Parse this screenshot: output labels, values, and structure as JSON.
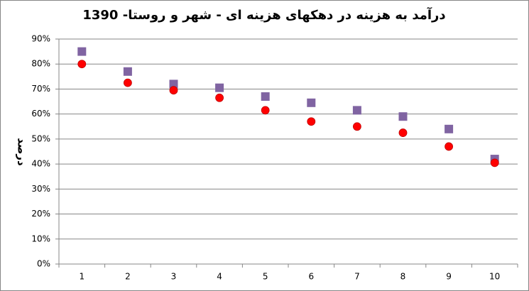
{
  "chart_data": {
    "type": "scatter",
    "title": "درآمد به هزینه در دهکهای هزینه ای - شهر و روستا- 1390",
    "y_label": "درصد",
    "categories": [
      "1",
      "2",
      "3",
      "4",
      "5",
      "6",
      "7",
      "8",
      "9",
      "10"
    ],
    "series": [
      {
        "color": "#8064a2",
        "marker": "square",
        "values": [
          85,
          77,
          72,
          70.5,
          67,
          64.5,
          61.5,
          59,
          54,
          42
        ]
      },
      {
        "color": "#ff0000",
        "marker": "circle",
        "values": [
          80,
          72.5,
          69.5,
          66.5,
          61.5,
          57,
          55,
          52.5,
          47,
          40.5
        ]
      }
    ],
    "ylim": [
      0,
      90
    ],
    "yticks": [
      {
        "value": 0,
        "label": "0%"
      },
      {
        "value": 10,
        "label": "10%"
      },
      {
        "value": 20,
        "label": "20%"
      },
      {
        "value": 30,
        "label": "30%"
      },
      {
        "value": 40,
        "label": "40%"
      },
      {
        "value": 50,
        "label": "50%"
      },
      {
        "value": 60,
        "label": "60%"
      },
      {
        "value": 70,
        "label": "70%"
      },
      {
        "value": 80,
        "label": "80%"
      },
      {
        "value": 90,
        "label": "90%"
      }
    ],
    "grid": true
  }
}
